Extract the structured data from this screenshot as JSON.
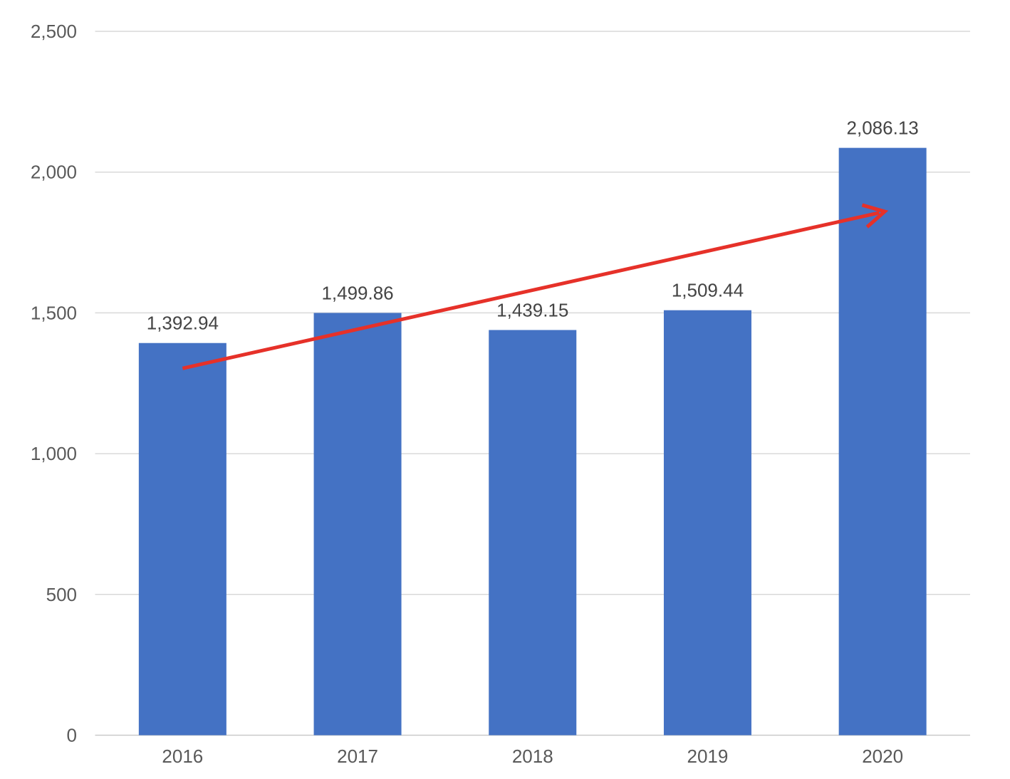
{
  "chart_data": {
    "type": "bar",
    "title": "",
    "categories": [
      "2016",
      "2017",
      "2018",
      "2019",
      "2020"
    ],
    "values": [
      1392.94,
      1499.86,
      1439.15,
      1509.44,
      2086.13
    ],
    "data_labels": [
      "1,392.94",
      "1,499.86",
      "1,439.15",
      "1,509.44",
      "2,086.13"
    ],
    "xlabel": "",
    "ylabel": "",
    "ylim": [
      0,
      2500
    ],
    "y_ticks": [
      0,
      500,
      1000,
      1500,
      2000,
      2500
    ],
    "y_tick_labels": [
      "0",
      "500",
      "1,000",
      "1,500",
      "2,000",
      "2,500"
    ],
    "grid": "horizontal",
    "legend": "none",
    "colors": {
      "bar": "#4472c4",
      "gridline": "#d9d9d9",
      "axis_line": "#c9c9c9",
      "tick_text": "#595959",
      "data_label_text": "#444444",
      "arrow": "#e63129"
    },
    "annotation": {
      "type": "trend-arrow",
      "description": "red upward arrow from 2016 bar into 2020 bar",
      "from": {
        "category": "2016",
        "value": 1303
      },
      "to": {
        "category": "2020",
        "value": 1860
      }
    }
  }
}
